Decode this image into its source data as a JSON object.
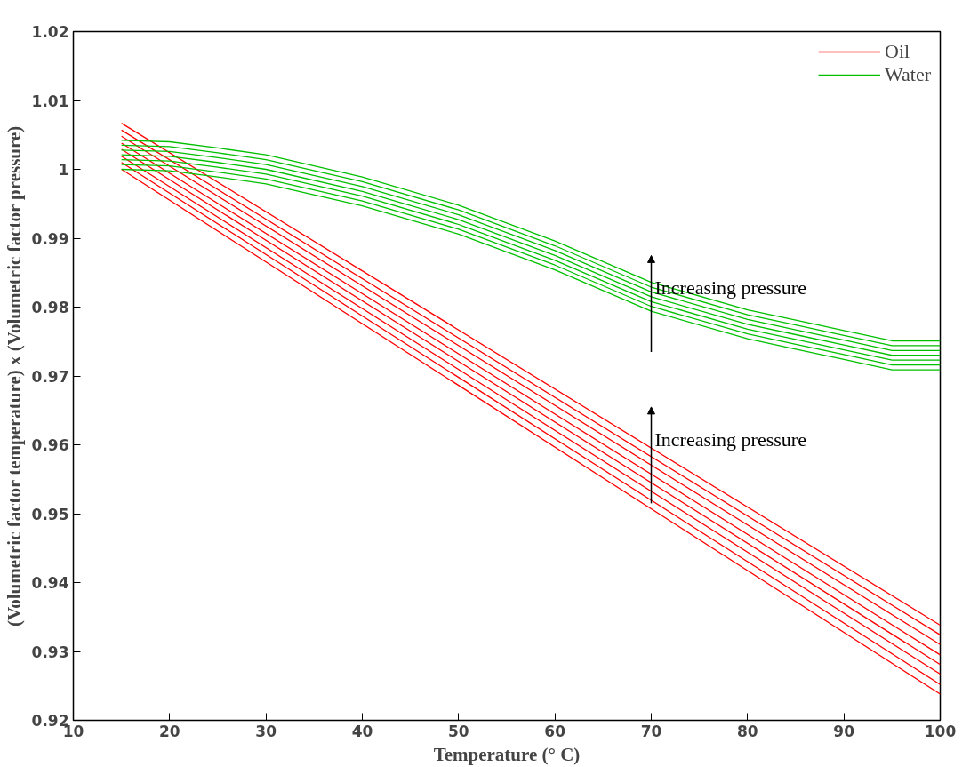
{
  "chart_data": {
    "type": "line",
    "xlabel": "Temperature (° C)",
    "ylabel": "(Volumetric factor temperature) x (Volumetric factor pressure)",
    "xlim": [
      10,
      100
    ],
    "ylim": [
      0.92,
      1.02
    ],
    "xticks": [
      10,
      20,
      30,
      40,
      50,
      60,
      70,
      80,
      90,
      100
    ],
    "yticks": [
      0.92,
      0.93,
      0.94,
      0.95,
      0.96,
      0.97,
      0.98,
      0.99,
      {
        "value": 1,
        "label": "1"
      },
      1.01,
      1.02
    ],
    "grid": false,
    "legend": "top right",
    "marker": "none",
    "line_style": "solid",
    "series": [
      {
        "name": "Oil",
        "color": "#ff0000",
        "x": [
          15,
          100
        ],
        "values": [
          1.0,
          0.9238
        ]
      },
      {
        "color": "#ff0000",
        "x": [
          15,
          100
        ],
        "values": [
          1.001,
          0.9252
        ]
      },
      {
        "color": "#ff0000",
        "x": [
          15,
          100
        ],
        "values": [
          1.0019,
          0.9267
        ]
      },
      {
        "color": "#ff0000",
        "x": [
          15,
          100
        ],
        "values": [
          1.0029,
          0.9281
        ]
      },
      {
        "color": "#ff0000",
        "x": [
          15,
          100
        ],
        "values": [
          1.0038,
          0.9295
        ]
      },
      {
        "color": "#ff0000",
        "x": [
          15,
          100
        ],
        "values": [
          1.0048,
          0.931
        ]
      },
      {
        "color": "#ff0000",
        "x": [
          15,
          100
        ],
        "values": [
          1.0057,
          0.9324
        ]
      },
      {
        "color": "#ff0000",
        "x": [
          15,
          100
        ],
        "values": [
          1.0067,
          0.9338
        ]
      },
      {
        "name": "Water",
        "color": "#00c000",
        "x": [
          15,
          20,
          25,
          30,
          40,
          50,
          60,
          70,
          80,
          85,
          90,
          95,
          100
        ],
        "values": [
          1.0,
          0.9998,
          0.9989,
          0.9979,
          0.9947,
          0.9906,
          0.9854,
          0.9794,
          0.9754,
          0.9739,
          0.9724,
          0.9709,
          0.9709
        ]
      },
      {
        "color": "#00c000",
        "x": [
          15,
          20,
          25,
          30,
          40,
          50,
          60,
          70,
          80,
          85,
          90,
          95,
          100
        ],
        "values": [
          1.0007,
          1.0005,
          0.9996,
          0.9986,
          0.9954,
          0.9913,
          0.9861,
          0.9801,
          0.9761,
          0.9746,
          0.9731,
          0.9716,
          0.9716
        ]
      },
      {
        "color": "#00c000",
        "x": [
          15,
          20,
          25,
          30,
          40,
          50,
          60,
          70,
          80,
          85,
          90,
          95,
          100
        ],
        "values": [
          1.0014,
          1.0012,
          1.0003,
          0.9993,
          0.9961,
          0.992,
          0.9868,
          0.9808,
          0.9768,
          0.9753,
          0.9738,
          0.9723,
          0.9723
        ]
      },
      {
        "color": "#00c000",
        "x": [
          15,
          20,
          25,
          30,
          40,
          50,
          60,
          70,
          80,
          85,
          90,
          95,
          100
        ],
        "values": [
          1.0021,
          1.0019,
          1.001,
          1.0,
          0.9968,
          0.9927,
          0.9875,
          0.9815,
          0.9775,
          0.976,
          0.9745,
          0.973,
          0.973
        ]
      },
      {
        "color": "#00c000",
        "x": [
          15,
          20,
          25,
          30,
          40,
          50,
          60,
          70,
          80,
          85,
          90,
          95,
          100
        ],
        "values": [
          1.0028,
          1.0026,
          1.0017,
          1.0007,
          0.9975,
          0.9934,
          0.9882,
          0.9822,
          0.9782,
          0.9767,
          0.9752,
          0.9737,
          0.9737
        ]
      },
      {
        "color": "#00c000",
        "x": [
          15,
          20,
          25,
          30,
          40,
          50,
          60,
          70,
          80,
          85,
          90,
          95,
          100
        ],
        "values": [
          1.0035,
          1.0033,
          1.0024,
          1.0014,
          0.9982,
          0.9941,
          0.9889,
          0.9829,
          0.9789,
          0.9774,
          0.9759,
          0.9744,
          0.9744
        ]
      },
      {
        "color": "#00c000",
        "x": [
          15,
          20,
          25,
          30,
          40,
          50,
          60,
          70,
          80,
          85,
          90,
          95,
          100
        ],
        "values": [
          1.0042,
          1.004,
          1.0031,
          1.0021,
          0.9989,
          0.9948,
          0.9896,
          0.9836,
          0.9796,
          0.9781,
          0.9766,
          0.9751,
          0.9751
        ]
      }
    ],
    "annotations": [
      {
        "text": "Increasing pressure",
        "x": 70,
        "y": 0.9815
      },
      {
        "text": "Increasing pressure",
        "x": 70,
        "y": 0.9595
      }
    ]
  }
}
